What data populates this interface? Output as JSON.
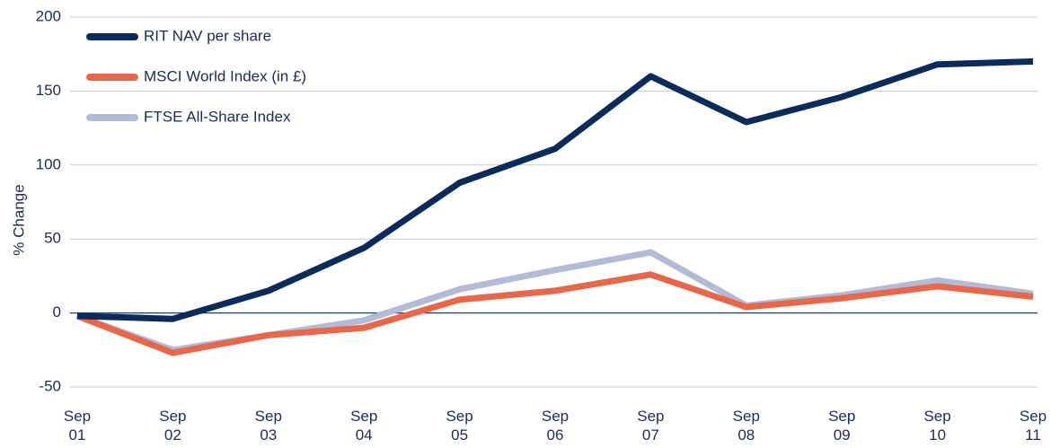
{
  "chart_data": {
    "type": "line",
    "y_label": "% Change",
    "categories": [
      "Sep 01",
      "Sep 02",
      "Sep 03",
      "Sep 04",
      "Sep 05",
      "Sep 06",
      "Sep 07",
      "Sep 08",
      "Sep 09",
      "Sep 10",
      "Sep 11"
    ],
    "series": [
      {
        "name": "RIT NAV per share",
        "color": "#0d2b5a",
        "values": [
          -2,
          -4,
          15,
          44,
          88,
          111,
          160,
          129,
          146,
          168,
          170
        ]
      },
      {
        "name": "MSCI World Index (in £)",
        "color": "#e8674a",
        "values": [
          -2,
          -27,
          -15,
          -10,
          9,
          15,
          26,
          4,
          10,
          18,
          11
        ]
      },
      {
        "name": "FTSE All-Share Index",
        "color": "#b4b9d6",
        "values": [
          -2,
          -25,
          -15,
          -5,
          16,
          29,
          41,
          5,
          12,
          22,
          13
        ]
      }
    ],
    "ylim": [
      -50,
      200
    ],
    "yticks": [
      -50,
      0,
      50,
      100,
      150,
      200
    ],
    "grid": true,
    "legend": "upper left"
  }
}
